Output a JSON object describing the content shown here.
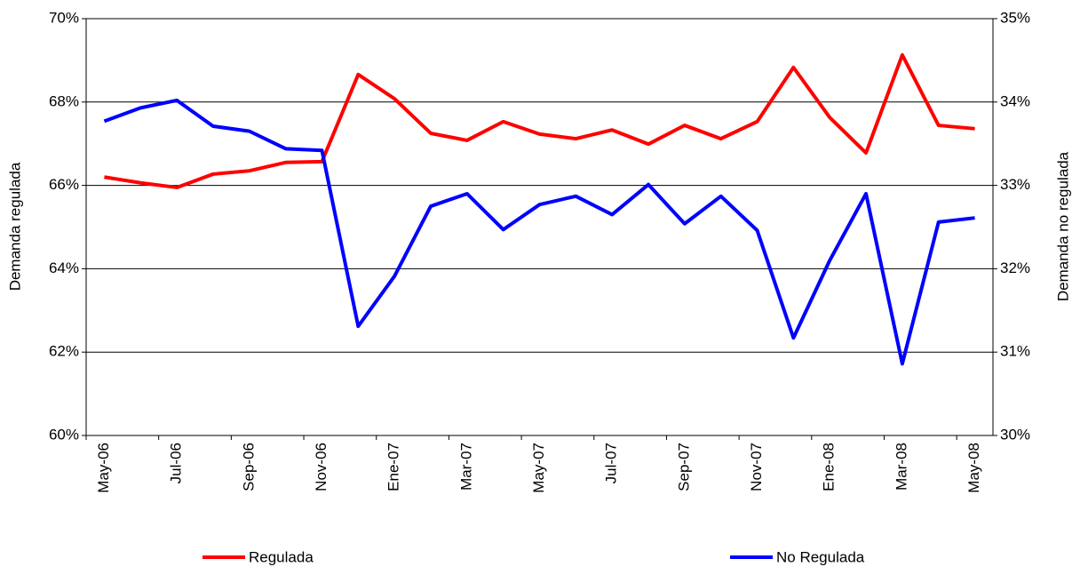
{
  "chart_data": {
    "type": "line",
    "categories": [
      "May-06",
      null,
      "Jul-06",
      null,
      "Sep-06",
      null,
      "Nov-06",
      null,
      "Ene-07",
      null,
      "Mar-07",
      null,
      "May-07",
      null,
      "Jul-07",
      null,
      "Sep-07",
      null,
      "Nov-07",
      null,
      "Ene-08",
      null,
      "Mar-08",
      null,
      "May-08"
    ],
    "series": [
      {
        "name": "Regulada",
        "color": "#ff0000",
        "axis": "y",
        "values": [
          66.2,
          66.06,
          65.95,
          66.27,
          66.35,
          66.55,
          66.57,
          68.66,
          68.08,
          67.25,
          67.08,
          67.53,
          67.23,
          67.12,
          67.33,
          66.99,
          67.44,
          67.12,
          67.53,
          68.83,
          67.63,
          66.78,
          69.13,
          67.44,
          67.36
        ]
      },
      {
        "name": "No Regulada",
        "color": "#0000ff",
        "axis": "y2",
        "values": [
          33.77,
          33.93,
          34.02,
          33.71,
          33.65,
          33.44,
          33.42,
          31.31,
          31.91,
          32.75,
          32.9,
          32.47,
          32.77,
          32.87,
          32.65,
          33.01,
          32.54,
          32.87,
          32.46,
          31.17,
          32.1,
          32.9,
          30.86,
          32.56,
          32.61
        ]
      }
    ],
    "ylabel": "Demanda regulada",
    "y2label": "Demanda no regulada",
    "ylim": [
      60,
      70
    ],
    "yticks": [
      {
        "value": 60,
        "label": "60%"
      },
      {
        "value": 62,
        "label": "62%"
      },
      {
        "value": 64,
        "label": "64%"
      },
      {
        "value": 66,
        "label": "66%"
      },
      {
        "value": 68,
        "label": "68%"
      },
      {
        "value": 70,
        "label": "70%"
      }
    ],
    "y2lim": [
      30,
      35
    ],
    "y2ticks": [
      {
        "value": 30,
        "label": "30%"
      },
      {
        "value": 31,
        "label": "31%"
      },
      {
        "value": 32,
        "label": "32%"
      },
      {
        "value": 33,
        "label": "33%"
      },
      {
        "value": 34,
        "label": "34%"
      },
      {
        "value": 35,
        "label": "35%"
      }
    ],
    "grid": true,
    "legend": "bottom"
  }
}
